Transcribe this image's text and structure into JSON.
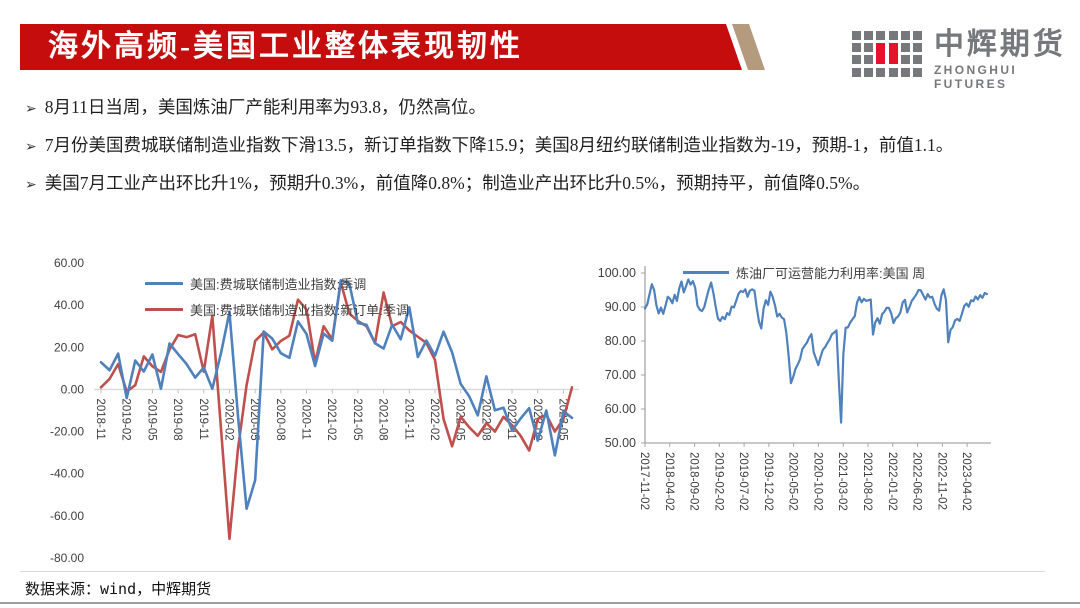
{
  "header": {
    "title": "海外高频-美国工业整体表现韧性",
    "logo_text": "中辉期货",
    "logo_subtext": "ZHONGHUI FUTURES"
  },
  "bullets": {
    "marker": "➢",
    "items": [
      "8月11日当周，美国炼油厂产能利用率为93.8，仍然高位。",
      "7月份美国费城联储制造业指数下滑13.5，新订单指数下降15.9；美国8月纽约联储制造业指数为-19，预期-1，前值1.1。",
      "美国7月工业产出环比升1%，预期升0.3%，前值降0.8%；制造业产出环比升0.5%，预期持平，前值降0.5%。"
    ]
  },
  "footer": {
    "source": "数据来源：wind，中辉期货"
  },
  "colors": {
    "banner_red": "#c50d0d",
    "stripe_tan": "#b59b7d",
    "title_text": "#ffffff",
    "logo_gray": "#77787b",
    "logo_red": "#e8112d",
    "series_blue": "#4f81bd",
    "series_red": "#c0504d",
    "axis_text": "#404040",
    "gridline": "#d9d9d9",
    "axis_line": "#a6a6a6"
  },
  "chart_data": [
    {
      "type": "line",
      "title": "",
      "x_unit": "month",
      "x_range": [
        "2018-11",
        "2023-06"
      ],
      "x_tick_labels": [
        "2018-11",
        "2019-02",
        "2019-05",
        "2019-08",
        "2019-11",
        "2020-02",
        "2020-05",
        "2020-08",
        "2020-11",
        "2021-02",
        "2021-05",
        "2021-08",
        "2021-11",
        "2022-02",
        "2022-05",
        "2022-08",
        "2022-11",
        "2023-02",
        "2023-05"
      ],
      "ylim": [
        -80,
        60
      ],
      "y_tick_values": [
        60,
        40,
        20,
        0,
        -20,
        -40,
        -60,
        -80
      ],
      "y_tick_labels": [
        "60.00",
        "40.00",
        "20.00",
        "0.00",
        "-20.00",
        "-40.00",
        "-60.00",
        "-80.00"
      ],
      "grid": "zero-line-only",
      "legend_position": "top-left-inside",
      "series": [
        {
          "name": "美国:费城联储制造业指数:季调",
          "color": "#4f81bd",
          "values": [
            12.9,
            9.1,
            17.0,
            -4.1,
            13.7,
            8.5,
            16.6,
            0.3,
            21.8,
            16.8,
            12.0,
            5.6,
            10.4,
            0.3,
            17.0,
            36.7,
            -12.7,
            -56.6,
            -43.1,
            27.5,
            24.1,
            17.2,
            15.0,
            32.3,
            26.3,
            11.1,
            26.5,
            23.1,
            51.8,
            50.2,
            31.5,
            30.7,
            21.9,
            19.4,
            30.7,
            23.8,
            39.0,
            15.4,
            23.2,
            16.0,
            27.4,
            17.6,
            2.6,
            -3.3,
            -12.3,
            6.2,
            -9.9,
            -8.7,
            -19.4,
            -13.8,
            -8.9,
            -24.3,
            -10.0,
            -31.3,
            -10.4,
            -13.5
          ]
        },
        {
          "name": "美国:费城联储制造业指数:新订单:季调",
          "color": "#c0504d",
          "values": [
            1.0,
            5.0,
            12.0,
            -1.0,
            2.0,
            15.7,
            11.0,
            8.3,
            18.9,
            25.8,
            24.8,
            26.2,
            8.4,
            35.0,
            -18.0,
            -70.9,
            -28.0,
            2.0,
            23.0,
            27.0,
            19.0,
            23.0,
            25.5,
            42.6,
            37.9,
            12.7,
            30.0,
            23.7,
            50.9,
            36.0,
            32.5,
            30.0,
            22.0,
            46.0,
            30.0,
            32.0,
            28.0,
            25.0,
            22.0,
            14.0,
            -14.0,
            -27.0,
            -13.0,
            -18.0,
            -22.0,
            -16.0,
            -20.0,
            -13.0,
            -17.0,
            -22.0,
            -29.0,
            -14.0,
            -12.0,
            -20.0,
            -14.0,
            1.0
          ]
        }
      ]
    },
    {
      "type": "line",
      "title": "",
      "x_unit": "week",
      "x_range": [
        "2017-11-02",
        "2023-08-11"
      ],
      "x_tick_labels": [
        "2017-11-02",
        "2018-04-02",
        "2018-09-02",
        "2019-02-02",
        "2019-07-02",
        "2019-12-02",
        "2020-05-02",
        "2020-10-02",
        "2021-03-02",
        "2021-08-02",
        "2022-01-02",
        "2022-06-02",
        "2022-11-02",
        "2023-04-02"
      ],
      "x_tick_point_interval": 10.867,
      "ylim": [
        50,
        100
      ],
      "y_tick_values": [
        100,
        90,
        80,
        70,
        60,
        50
      ],
      "y_tick_labels": [
        "100.00",
        "90.00",
        "80.00",
        "70.00",
        "60.00",
        "50.00"
      ],
      "grid": "none",
      "legend_position": "top-center",
      "series": [
        {
          "name": "炼油厂可运营能力利用率:美国  周",
          "color": "#4f81bd",
          "values": [
            89.6,
            90.8,
            93.8,
            96.7,
            95.0,
            90.5,
            88.1,
            89.8,
            88.0,
            90.4,
            93.0,
            92.4,
            91.1,
            93.6,
            91.8,
            95.4,
            97.5,
            94.3,
            96.1,
            98.1,
            96.6,
            97.6,
            95.7,
            90.4,
            89.2,
            88.8,
            90.0,
            92.7,
            95.2,
            97.2,
            94.1,
            90.1,
            86.6,
            85.9,
            87.1,
            86.4,
            88.2,
            87.7,
            90.1,
            89.9,
            91.8,
            93.9,
            94.7,
            94.4,
            95.2,
            93.0,
            94.8,
            95.2,
            94.8,
            89.8,
            85.7,
            83.7,
            89.5,
            92.0,
            90.6,
            94.5,
            93.0,
            90.5,
            87.2,
            88.0,
            86.9,
            86.4,
            82.3,
            75.6,
            67.6,
            69.4,
            71.8,
            73.1,
            74.6,
            77.6,
            78.6,
            79.5,
            81.0,
            82.0,
            76.7,
            74.8,
            72.9,
            75.3,
            77.4,
            78.2,
            79.4,
            80.5,
            82.0,
            82.5,
            83.1,
            68.6,
            56.0,
            76.1,
            83.9,
            84.0,
            85.4,
            86.4,
            87.3,
            91.3,
            92.9,
            91.4,
            92.4,
            91.8,
            92.0,
            92.2,
            81.9,
            85.5,
            86.7,
            85.1,
            87.9,
            88.6,
            89.8,
            89.7,
            88.1,
            85.3,
            86.7,
            87.2,
            88.4,
            91.3,
            92.1,
            88.4,
            90.0,
            91.8,
            92.7,
            93.7,
            95.0,
            94.9,
            93.5,
            92.2,
            93.8,
            92.8,
            93.0,
            90.9,
            89.5,
            88.9,
            93.4,
            95.2,
            92.0,
            79.6,
            83.3,
            84.1,
            86.1,
            86.5,
            85.9,
            88.0,
            90.3,
            91.0,
            90.1,
            92.0,
            91.7,
            93.1,
            92.2,
            93.5,
            92.7,
            94.1,
            93.8
          ]
        }
      ]
    }
  ]
}
